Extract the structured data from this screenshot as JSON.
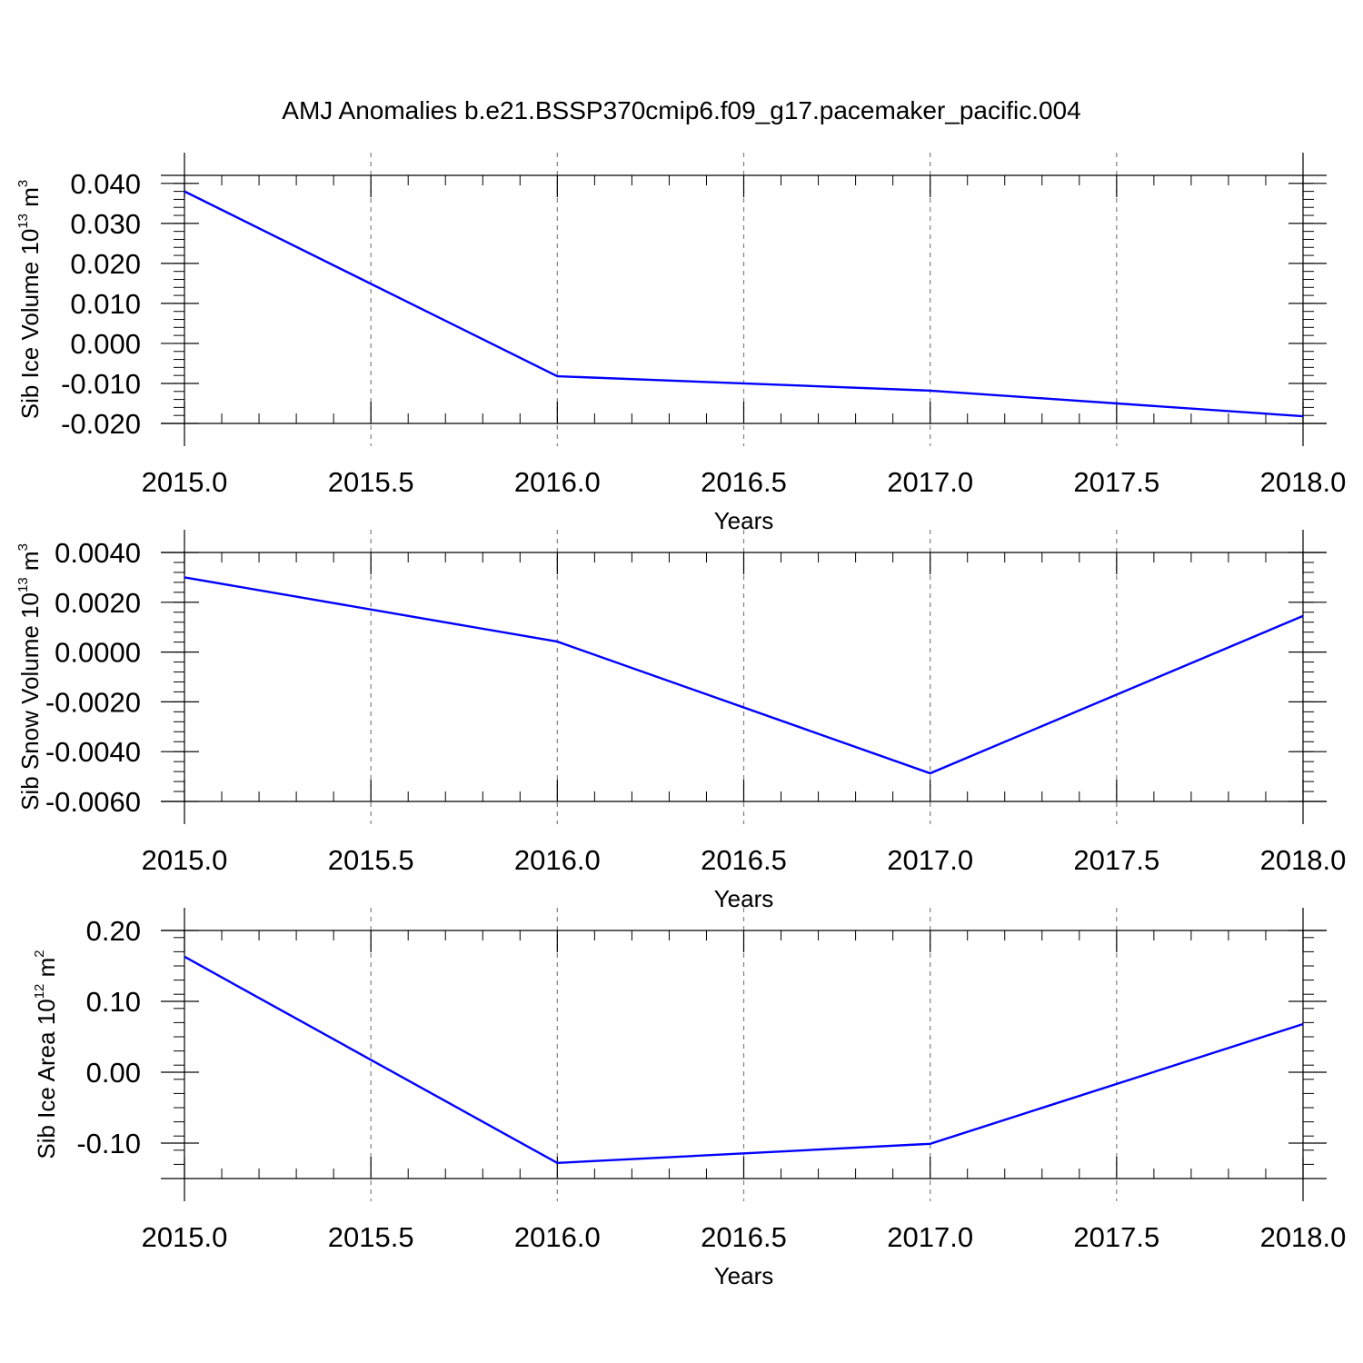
{
  "title": "AMJ Anomalies b.e21.BSSP370cmip6.f09_g17.pacemaker_pacific.004",
  "colors": {
    "line": "#0000ff",
    "axis": "#000000",
    "grid": "#808080"
  },
  "chart_data": [
    {
      "type": "line",
      "ylabel_main": "Sib Ice Volume 10",
      "ylabel_exp": "13",
      "ylabel_unit": " m",
      "ylabel_unit_exp": "3",
      "xlabel": "Years",
      "xlim": [
        2015.0,
        2018.0
      ],
      "ylim": [
        -0.02,
        0.042
      ],
      "x_ticks": [
        "2015.0",
        "2015.5",
        "2016.0",
        "2016.5",
        "2017.0",
        "2017.5",
        "2018.0"
      ],
      "y_ticks": [
        "0.040",
        "0.030",
        "0.020",
        "0.010",
        "0.000",
        "-0.010",
        "-0.020"
      ],
      "y_tick_values": [
        0.04,
        0.03,
        0.02,
        0.01,
        0.0,
        -0.01,
        -0.02
      ],
      "x": [
        2015.0,
        2016.0,
        2017.0,
        2018.0
      ],
      "series": [
        {
          "values": [
            0.038,
            -0.0082,
            -0.0118,
            -0.0182
          ]
        }
      ],
      "grid": "vertical dashed at 0.5-year ticks"
    },
    {
      "type": "line",
      "ylabel_main": "Sib Snow Volume 10",
      "ylabel_exp": "13",
      "ylabel_unit": " m",
      "ylabel_unit_exp": "3",
      "xlabel": "Years",
      "xlim": [
        2015.0,
        2018.0
      ],
      "ylim": [
        -0.006,
        0.004
      ],
      "x_ticks": [
        "2015.0",
        "2015.5",
        "2016.0",
        "2016.5",
        "2017.0",
        "2017.5",
        "2018.0"
      ],
      "y_ticks": [
        "0.0040",
        "0.0020",
        "0.0000",
        "-0.0020",
        "-0.0040",
        "-0.0060"
      ],
      "y_tick_values": [
        0.004,
        0.002,
        0.0,
        -0.002,
        -0.004,
        -0.006
      ],
      "x": [
        2015.0,
        2016.0,
        2017.0,
        2018.0
      ],
      "series": [
        {
          "values": [
            0.003,
            0.00042,
            -0.00487,
            0.00145
          ]
        }
      ],
      "grid": "vertical dashed at 0.5-year ticks"
    },
    {
      "type": "line",
      "ylabel_main": "Sib Ice Area 10",
      "ylabel_exp": "12",
      "ylabel_unit": " m",
      "ylabel_unit_exp": "2",
      "xlabel": "Years",
      "xlim": [
        2015.0,
        2018.0
      ],
      "ylim": [
        -0.15,
        0.2
      ],
      "x_ticks": [
        "2015.0",
        "2015.5",
        "2016.0",
        "2016.5",
        "2017.0",
        "2017.5",
        "2018.0"
      ],
      "y_ticks": [
        "0.20",
        "0.10",
        "0.00",
        "-0.10"
      ],
      "y_tick_values": [
        0.2,
        0.1,
        0.0,
        -0.1
      ],
      "x": [
        2015.0,
        2016.0,
        2017.0,
        2018.0
      ],
      "series": [
        {
          "values": [
            0.163,
            -0.128,
            -0.101,
            0.068
          ]
        }
      ],
      "grid": "vertical dashed at 0.5-year ticks"
    }
  ]
}
